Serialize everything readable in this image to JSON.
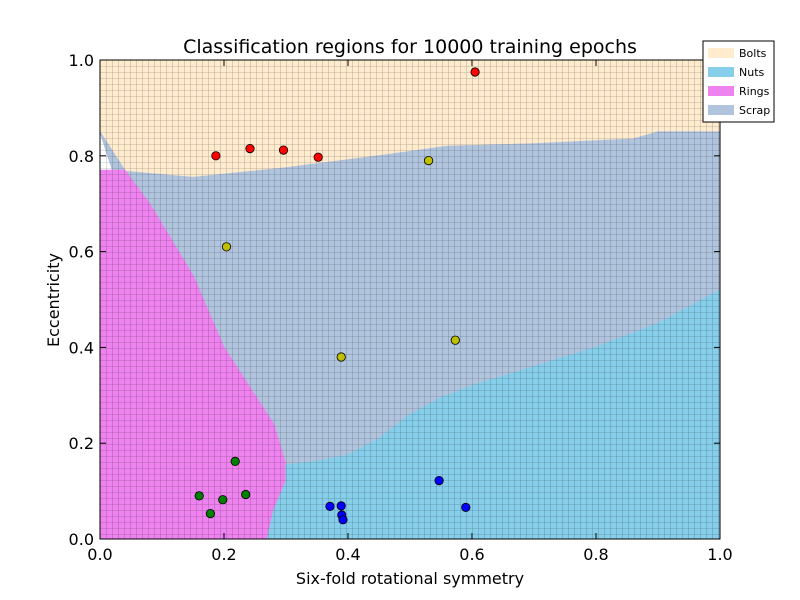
{
  "chart_data": {
    "type": "scatter",
    "title": "Classification regions for 10000 training epochs",
    "xlabel": "Six-fold rotational symmetry",
    "ylabel": "Eccentricity",
    "xlim": [
      0.0,
      1.0
    ],
    "ylim": [
      0.0,
      1.0
    ],
    "x_ticks": [
      "0.0",
      "0.2",
      "0.4",
      "0.6",
      "0.8",
      "1.0"
    ],
    "y_ticks": [
      "0.0",
      "0.2",
      "0.4",
      "0.6",
      "0.8",
      "1.0"
    ],
    "grid": true,
    "legend_position": "top-right",
    "regions": [
      {
        "name": "Bolts",
        "color": "#ffebcd",
        "polygon": [
          [
            0,
            1
          ],
          [
            1,
            1
          ],
          [
            1,
            0.85
          ],
          [
            0.9,
            0.85
          ],
          [
            0.86,
            0.835
          ],
          [
            0.7,
            0.825
          ],
          [
            0.56,
            0.82
          ],
          [
            0.45,
            0.8
          ],
          [
            0.3,
            0.775
          ],
          [
            0.15,
            0.755
          ],
          [
            0.02,
            0.77
          ],
          [
            0,
            0.85
          ]
        ]
      },
      {
        "name": "Scrap",
        "color": "#b0c4de",
        "polygon": [
          [
            0,
            0.85
          ],
          [
            0.02,
            0.77
          ],
          [
            0.15,
            0.755
          ],
          [
            0.3,
            0.775
          ],
          [
            0.45,
            0.8
          ],
          [
            0.56,
            0.82
          ],
          [
            0.7,
            0.825
          ],
          [
            0.86,
            0.835
          ],
          [
            0.9,
            0.85
          ],
          [
            1,
            0.85
          ],
          [
            1,
            0.52
          ],
          [
            0.9,
            0.45
          ],
          [
            0.8,
            0.4
          ],
          [
            0.7,
            0.36
          ],
          [
            0.6,
            0.32
          ],
          [
            0.55,
            0.295
          ],
          [
            0.5,
            0.26
          ],
          [
            0.45,
            0.21
          ],
          [
            0.4,
            0.175
          ],
          [
            0.34,
            0.16
          ],
          [
            0.3,
            0.155
          ],
          [
            0.28,
            0.24
          ],
          [
            0.2,
            0.4
          ],
          [
            0.15,
            0.55
          ],
          [
            0.08,
            0.7
          ],
          [
            0.04,
            0.77
          ]
        ]
      },
      {
        "name": "Rings",
        "color": "#ee82ee",
        "polygon": [
          [
            0,
            0.77
          ],
          [
            0.04,
            0.77
          ],
          [
            0.08,
            0.7
          ],
          [
            0.15,
            0.55
          ],
          [
            0.2,
            0.4
          ],
          [
            0.28,
            0.24
          ],
          [
            0.3,
            0.155
          ],
          [
            0.3,
            0.12
          ],
          [
            0.28,
            0.06
          ],
          [
            0.27,
            0.0
          ],
          [
            0,
            0
          ]
        ]
      },
      {
        "name": "Nuts",
        "color": "#87ceeb",
        "polygon": [
          [
            0.27,
            0.0
          ],
          [
            0.28,
            0.06
          ],
          [
            0.3,
            0.12
          ],
          [
            0.3,
            0.155
          ],
          [
            0.34,
            0.16
          ],
          [
            0.4,
            0.175
          ],
          [
            0.45,
            0.21
          ],
          [
            0.5,
            0.26
          ],
          [
            0.55,
            0.295
          ],
          [
            0.6,
            0.32
          ],
          [
            0.7,
            0.36
          ],
          [
            0.8,
            0.4
          ],
          [
            0.9,
            0.45
          ],
          [
            1,
            0.52
          ],
          [
            1,
            0
          ]
        ]
      }
    ],
    "legend": [
      {
        "label": "Bolts",
        "color": "#ffebcd"
      },
      {
        "label": "Nuts",
        "color": "#87ceeb"
      },
      {
        "label": "Rings",
        "color": "#ee82ee"
      },
      {
        "label": "Scrap",
        "color": "#b0c4de"
      }
    ],
    "series": [
      {
        "color": "#ff0000",
        "points": [
          [
            0.187,
            0.8
          ],
          [
            0.242,
            0.815
          ],
          [
            0.296,
            0.812
          ],
          [
            0.352,
            0.797
          ],
          [
            0.605,
            0.975
          ]
        ]
      },
      {
        "color": "#bfbf00",
        "points": [
          [
            0.204,
            0.61
          ],
          [
            0.389,
            0.38
          ],
          [
            0.53,
            0.79
          ],
          [
            0.573,
            0.415
          ]
        ]
      },
      {
        "color": "#008000",
        "points": [
          [
            0.16,
            0.09
          ],
          [
            0.178,
            0.053
          ],
          [
            0.198,
            0.082
          ],
          [
            0.218,
            0.162
          ],
          [
            0.235,
            0.093
          ]
        ]
      },
      {
        "color": "#0000ff",
        "points": [
          [
            0.371,
            0.068
          ],
          [
            0.389,
            0.069
          ],
          [
            0.39,
            0.05
          ],
          [
            0.392,
            0.04
          ],
          [
            0.547,
            0.122
          ],
          [
            0.59,
            0.066
          ]
        ]
      }
    ]
  }
}
